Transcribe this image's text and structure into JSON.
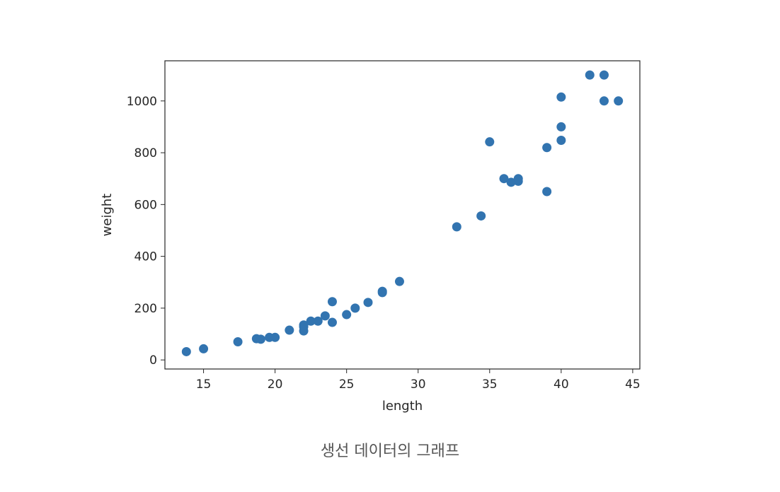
{
  "chart_data": {
    "type": "scatter",
    "xlabel": "length",
    "ylabel": "weight",
    "xlim": [
      12.3,
      45.5
    ],
    "ylim": [
      -35,
      1155
    ],
    "xticks": [
      15,
      20,
      25,
      30,
      35,
      40,
      45
    ],
    "yticks": [
      0,
      200,
      400,
      600,
      800,
      1000
    ],
    "grid": false,
    "marker_color": "#3274b0",
    "series": [
      {
        "points": [
          [
            13.8,
            32
          ],
          [
            15.0,
            43
          ],
          [
            17.4,
            70
          ],
          [
            18.7,
            82
          ],
          [
            19.0,
            80
          ],
          [
            19.6,
            87
          ],
          [
            20.0,
            87
          ],
          [
            21.0,
            115
          ],
          [
            22.0,
            112
          ],
          [
            22.0,
            128
          ],
          [
            22.0,
            135
          ],
          [
            22.5,
            150
          ],
          [
            23.0,
            150
          ],
          [
            23.5,
            170
          ],
          [
            24.0,
            145
          ],
          [
            24.0,
            225
          ],
          [
            25.0,
            175
          ],
          [
            25.6,
            200
          ],
          [
            26.5,
            222
          ],
          [
            27.5,
            260
          ],
          [
            27.5,
            265
          ],
          [
            28.7,
            303
          ],
          [
            32.7,
            514
          ],
          [
            34.4,
            556
          ],
          [
            35.0,
            842
          ],
          [
            36.0,
            700
          ],
          [
            36.5,
            686
          ],
          [
            37.0,
            690
          ],
          [
            37.0,
            700
          ],
          [
            39.0,
            650
          ],
          [
            39.0,
            820
          ],
          [
            40.0,
            848
          ],
          [
            40.0,
            900
          ],
          [
            40.0,
            1015
          ],
          [
            42.0,
            1100
          ],
          [
            43.0,
            1100
          ],
          [
            43.0,
            1000
          ],
          [
            44.0,
            1000
          ]
        ]
      }
    ]
  },
  "caption": "생선 데이터의 그래프"
}
